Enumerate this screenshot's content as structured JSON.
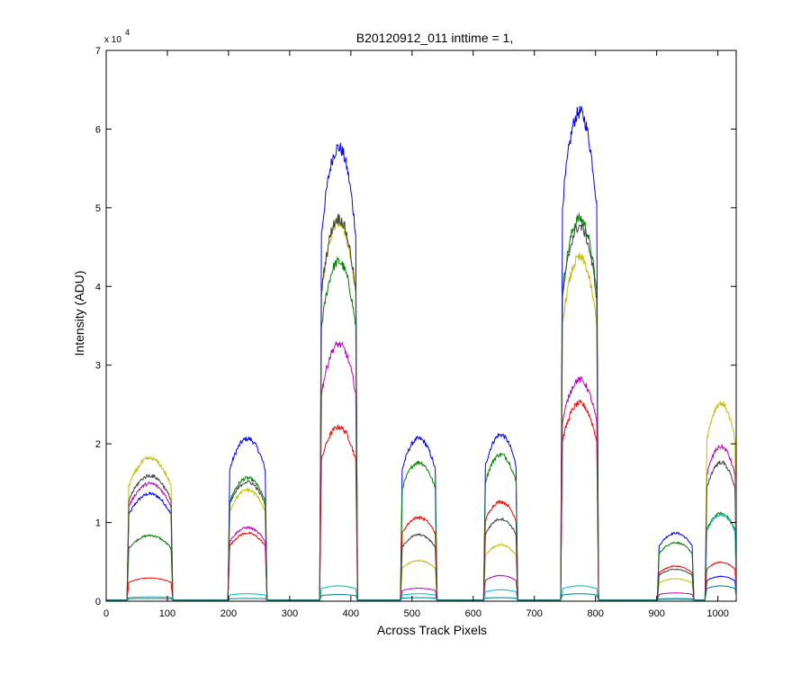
{
  "chart_data": {
    "type": "line",
    "title": "B20120912_011 inttime = 1,",
    "xlabel": "Across Track Pixels",
    "ylabel": "Intensity (ADU)",
    "y_multiplier_label": "x 10",
    "y_multiplier_exp": "4",
    "xlim": [
      0,
      1030
    ],
    "ylim": [
      0,
      70000
    ],
    "xticks": [
      0,
      100,
      200,
      300,
      400,
      500,
      600,
      700,
      800,
      900,
      1000
    ],
    "yticks": [
      0,
      10000,
      20000,
      30000,
      40000,
      50000,
      60000,
      70000
    ],
    "ytick_labels": [
      "0",
      "1",
      "2",
      "3",
      "4",
      "5",
      "6",
      "7"
    ],
    "grid": false,
    "legend": "none",
    "blocks": [
      {
        "start": 35,
        "end": 108
      },
      {
        "start": 200,
        "end": 262
      },
      {
        "start": 350,
        "end": 410
      },
      {
        "start": 482,
        "end": 540
      },
      {
        "start": 618,
        "end": 672
      },
      {
        "start": 744,
        "end": 804
      },
      {
        "start": 902,
        "end": 960
      },
      {
        "start": 980,
        "end": 1030
      }
    ],
    "series": [
      {
        "color": "#0000ff",
        "peaks": [
          13500,
          20500,
          57500,
          20500,
          21000,
          62000,
          8500,
          3000
        ]
      },
      {
        "color": "#008000",
        "peaks": [
          8200,
          15500,
          43000,
          17500,
          18500,
          48500,
          7300,
          11000
        ]
      },
      {
        "color": "#ff0000",
        "peaks": [
          2800,
          8500,
          22000,
          10500,
          12500,
          25000,
          4300,
          4800
        ]
      },
      {
        "color": "#00bfbf",
        "peaks": [
          400,
          800,
          1800,
          800,
          1300,
          1800,
          200,
          10800
        ]
      },
      {
        "color": "#bf00bf",
        "peaks": [
          14800,
          9200,
          32500,
          1500,
          3100,
          28000,
          900,
          19500
        ]
      },
      {
        "color": "#bfbf00",
        "peaks": [
          18000,
          14000,
          48000,
          5000,
          7000,
          43500,
          2700,
          25000
        ]
      },
      {
        "color": "#404040",
        "peaks": [
          15800,
          15000,
          48500,
          8300,
          10300,
          47500,
          3900,
          17500
        ]
      },
      {
        "color": "#008080",
        "peaks": [
          200,
          200,
          700,
          300,
          300,
          800,
          100,
          1800
        ]
      }
    ]
  }
}
